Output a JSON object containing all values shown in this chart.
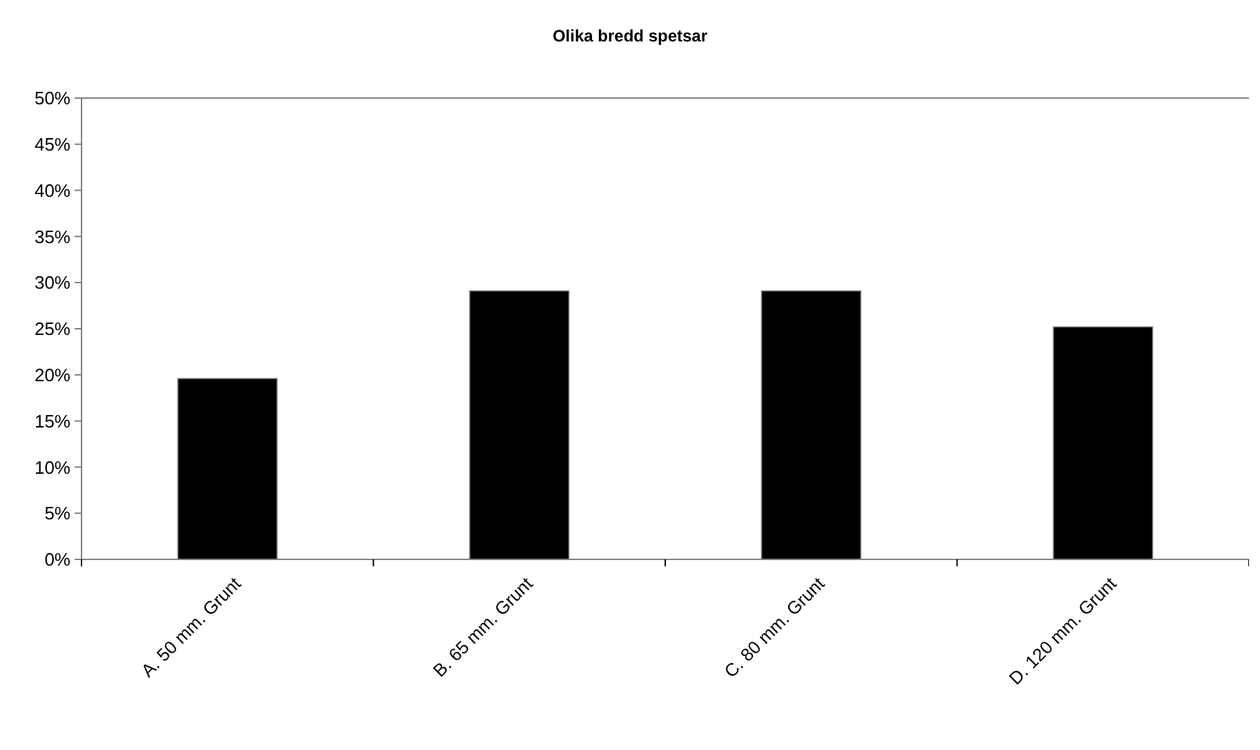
{
  "chart_data": {
    "type": "bar",
    "title": "Olika bredd spetsar",
    "categories": [
      "A. 50 mm. Grunt",
      "B. 65 mm. Grunt",
      "C. 80 mm. Grunt",
      "D. 120 mm. Grunt"
    ],
    "values": [
      19.6,
      29.1,
      29.1,
      25.2
    ],
    "color": "#000000",
    "ylim": [
      0,
      50
    ],
    "yticks": [
      {
        "value": 0,
        "label": "0%"
      },
      {
        "value": 5,
        "label": "5%"
      },
      {
        "value": 10,
        "label": "10%"
      },
      {
        "value": 15,
        "label": "15%"
      },
      {
        "value": 20,
        "label": "20%"
      },
      {
        "value": 25,
        "label": "25%"
      },
      {
        "value": 30,
        "label": "30%"
      },
      {
        "value": 35,
        "label": "35%"
      },
      {
        "value": 40,
        "label": "40%"
      },
      {
        "value": 45,
        "label": "45%"
      },
      {
        "value": 50,
        "label": "50%"
      }
    ],
    "grid": false
  }
}
